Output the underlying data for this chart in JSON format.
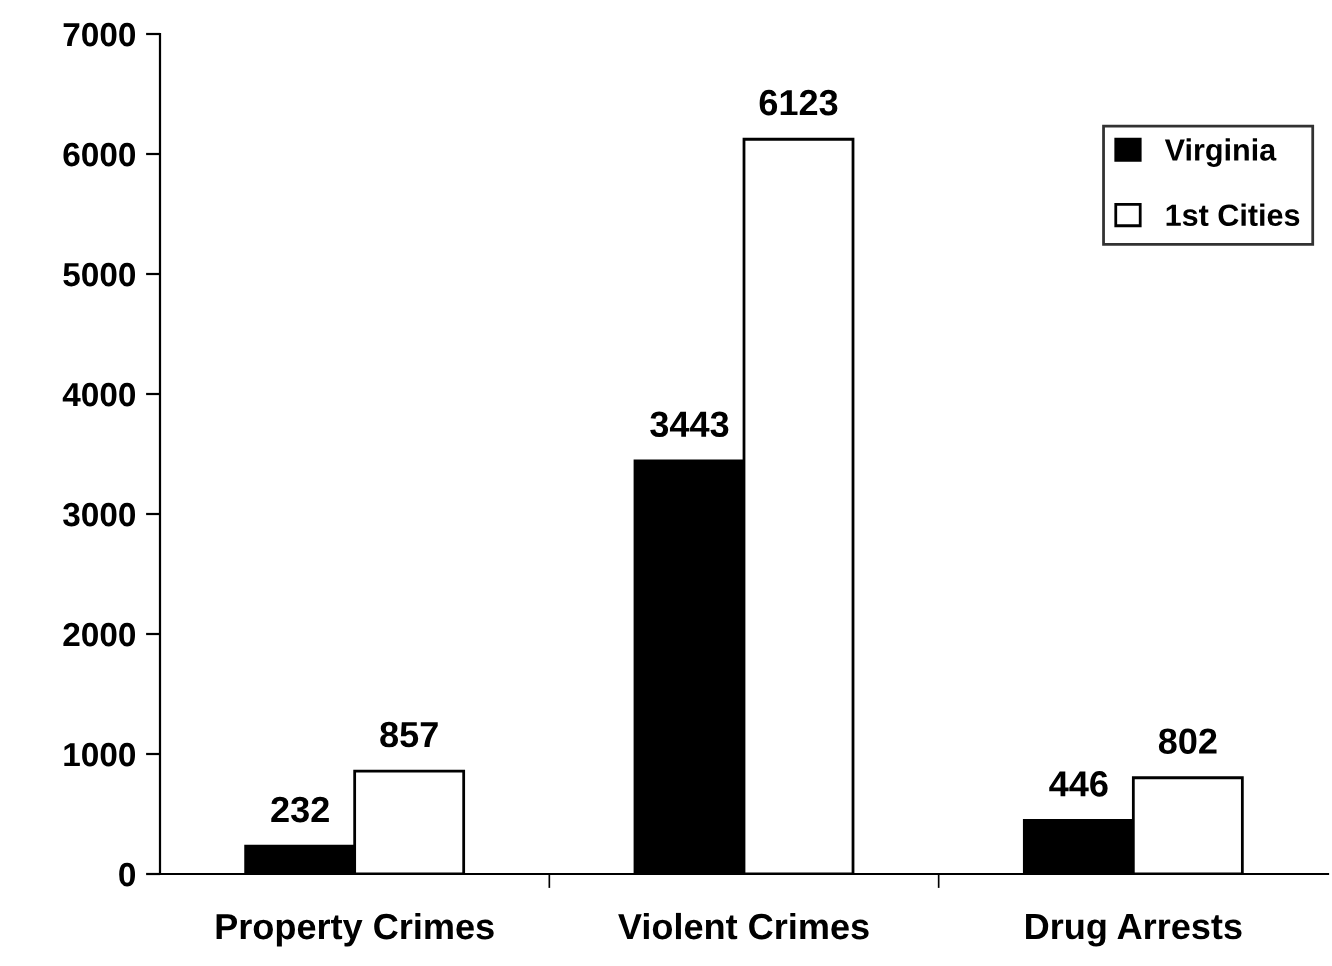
{
  "chart_data": {
    "type": "bar",
    "categories": [
      "Property Crimes",
      "Violent Crimes",
      "Drug Arrests"
    ],
    "series": [
      {
        "name": "Virginia",
        "color": "#000000",
        "values": [
          232,
          3443,
          446
        ]
      },
      {
        "name": "1st Cities",
        "color": "#ffffff",
        "values": [
          857,
          6123,
          802
        ]
      }
    ],
    "ylim": [
      0,
      7000
    ],
    "yticks": [
      0,
      1000,
      2000,
      3000,
      4000,
      5000,
      6000,
      7000
    ],
    "data_labels": true,
    "grid": false,
    "legend": "right"
  }
}
